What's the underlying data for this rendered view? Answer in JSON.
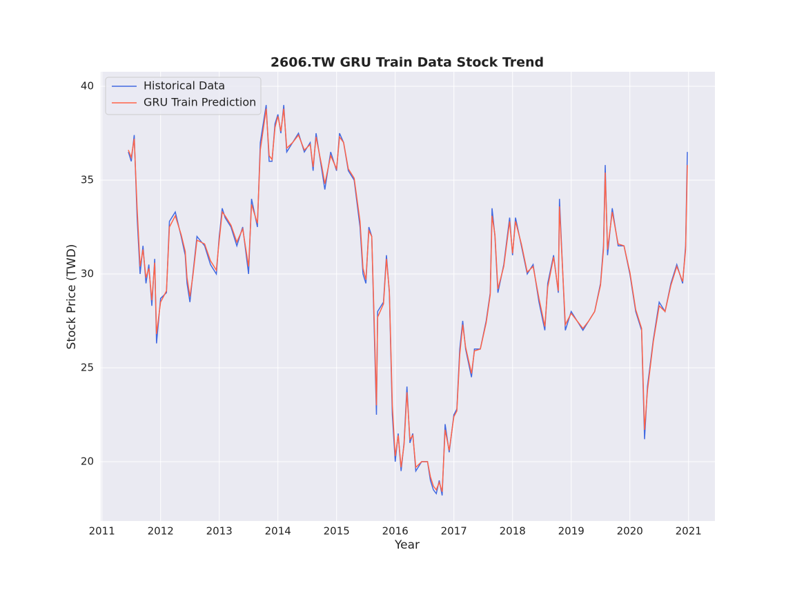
{
  "chart_data": {
    "type": "line",
    "title": "2606.TW  GRU Train Data Stock Trend",
    "x_label": "Year",
    "y_label": "Stock Price (TWD)",
    "x": [
      2011.45,
      2011.5,
      2011.55,
      2011.6,
      2011.65,
      2011.7,
      2011.75,
      2011.8,
      2011.85,
      2011.9,
      2011.93,
      2012.0,
      2012.1,
      2012.15,
      2012.25,
      2012.35,
      2012.42,
      2012.45,
      2012.5,
      2012.55,
      2012.62,
      2012.75,
      2012.85,
      2012.95,
      2013.0,
      2013.05,
      2013.1,
      2013.2,
      2013.3,
      2013.4,
      2013.5,
      2013.55,
      2013.65,
      2013.7,
      2013.8,
      2013.85,
      2013.9,
      2013.95,
      2014.0,
      2014.05,
      2014.1,
      2014.15,
      2014.25,
      2014.35,
      2014.45,
      2014.55,
      2014.6,
      2014.65,
      2014.75,
      2014.8,
      2014.9,
      2015.0,
      2015.05,
      2015.12,
      2015.2,
      2015.3,
      2015.4,
      2015.45,
      2015.5,
      2015.55,
      2015.6,
      2015.65,
      2015.68,
      2015.7,
      2015.8,
      2015.85,
      2015.9,
      2015.95,
      2016.0,
      2016.05,
      2016.1,
      2016.15,
      2016.2,
      2016.25,
      2016.3,
      2016.35,
      2016.45,
      2016.55,
      2016.6,
      2016.65,
      2016.7,
      2016.75,
      2016.8,
      2016.85,
      2016.92,
      2017.0,
      2017.05,
      2017.1,
      2017.15,
      2017.2,
      2017.3,
      2017.35,
      2017.45,
      2017.55,
      2017.62,
      2017.65,
      2017.7,
      2017.75,
      2017.85,
      2017.95,
      2018.0,
      2018.05,
      2018.15,
      2018.25,
      2018.35,
      2018.45,
      2018.55,
      2018.6,
      2018.7,
      2018.78,
      2018.8,
      2018.9,
      2019.0,
      2019.1,
      2019.2,
      2019.3,
      2019.4,
      2019.5,
      2019.55,
      2019.58,
      2019.62,
      2019.7,
      2019.8,
      2019.9,
      2020.0,
      2020.1,
      2020.2,
      2020.25,
      2020.3,
      2020.4,
      2020.5,
      2020.6,
      2020.7,
      2020.8,
      2020.9,
      2020.95,
      2020.98
    ],
    "series": [
      {
        "name": "Historical Data",
        "color": "#4169e1",
        "values": [
          36.5,
          36.0,
          37.4,
          33.0,
          30.0,
          31.5,
          29.5,
          30.5,
          28.3,
          30.8,
          26.3,
          28.7,
          29.0,
          32.8,
          33.3,
          32.0,
          31.0,
          29.5,
          28.5,
          30.0,
          32.0,
          31.5,
          30.5,
          30.0,
          32.0,
          33.5,
          33.0,
          32.5,
          31.5,
          32.5,
          30.0,
          34.0,
          32.5,
          37.0,
          39.0,
          36.0,
          36.0,
          38.0,
          38.5,
          37.5,
          39.0,
          36.5,
          37.0,
          37.5,
          36.5,
          37.0,
          35.5,
          37.5,
          35.5,
          34.5,
          36.5,
          35.5,
          37.5,
          37.0,
          35.5,
          35.0,
          32.5,
          30.0,
          29.5,
          32.5,
          32.0,
          26.0,
          22.5,
          28.0,
          28.5,
          31.0,
          29.0,
          22.5,
          20.0,
          21.5,
          19.5,
          21.0,
          24.0,
          21.0,
          21.5,
          19.5,
          20.0,
          20.0,
          19.0,
          18.5,
          18.3,
          19.0,
          18.2,
          22.0,
          20.5,
          22.5,
          22.8,
          26.0,
          27.5,
          26.0,
          24.5,
          26.0,
          26.0,
          27.5,
          29.0,
          33.5,
          32.0,
          29.0,
          30.5,
          33.0,
          31.0,
          33.0,
          31.5,
          30.0,
          30.5,
          28.5,
          27.0,
          29.5,
          31.0,
          29.0,
          34.0,
          27.0,
          28.0,
          27.5,
          27.0,
          27.5,
          28.0,
          29.5,
          31.5,
          35.8,
          31.0,
          33.5,
          31.5,
          31.5,
          30.0,
          28.0,
          27.0,
          21.2,
          24.0,
          26.5,
          28.5,
          28.0,
          29.5,
          30.5,
          29.5,
          31.5,
          36.5
        ]
      },
      {
        "name": "GRU Train Prediction",
        "color": "#ff6347",
        "values": [
          36.6,
          36.2,
          37.2,
          33.5,
          30.4,
          31.3,
          29.8,
          30.3,
          28.6,
          30.6,
          26.8,
          28.5,
          29.1,
          32.5,
          33.1,
          32.1,
          31.2,
          29.8,
          28.8,
          29.9,
          31.8,
          31.6,
          30.7,
          30.2,
          31.8,
          33.3,
          33.1,
          32.6,
          31.7,
          32.4,
          30.4,
          33.7,
          32.7,
          36.6,
          38.8,
          36.3,
          36.1,
          37.8,
          38.4,
          37.6,
          38.8,
          36.7,
          37.0,
          37.4,
          36.6,
          36.9,
          35.7,
          37.3,
          35.7,
          34.8,
          36.3,
          35.6,
          37.3,
          37.0,
          35.6,
          35.1,
          32.8,
          30.3,
          29.7,
          32.3,
          32.0,
          26.5,
          23.0,
          27.7,
          28.4,
          30.8,
          29.1,
          23.0,
          20.3,
          21.4,
          19.7,
          20.9,
          23.7,
          21.2,
          21.4,
          19.7,
          20.0,
          20.0,
          19.2,
          18.7,
          18.5,
          18.9,
          18.4,
          21.7,
          20.6,
          22.4,
          22.7,
          25.7,
          27.3,
          26.1,
          24.7,
          25.9,
          26.0,
          27.4,
          28.9,
          33.1,
          32.1,
          29.2,
          30.4,
          32.8,
          31.1,
          32.8,
          31.6,
          30.1,
          30.4,
          28.7,
          27.2,
          29.3,
          30.9,
          29.1,
          33.6,
          27.3,
          27.9,
          27.5,
          27.1,
          27.5,
          28.0,
          29.4,
          31.3,
          35.4,
          31.3,
          33.3,
          31.6,
          31.5,
          30.1,
          28.1,
          27.1,
          21.7,
          23.8,
          26.4,
          28.3,
          28.0,
          29.4,
          30.4,
          29.6,
          31.3,
          35.8
        ]
      }
    ],
    "xlim": [
      2010.98,
      2021.45
    ],
    "ylim": [
      16.84,
      40.77
    ],
    "xticks": [
      2011,
      2012,
      2013,
      2014,
      2015,
      2016,
      2017,
      2018,
      2019,
      2020,
      2021
    ],
    "yticks": [
      20,
      25,
      30,
      35,
      40
    ],
    "grid": true,
    "legend": "upper left"
  }
}
